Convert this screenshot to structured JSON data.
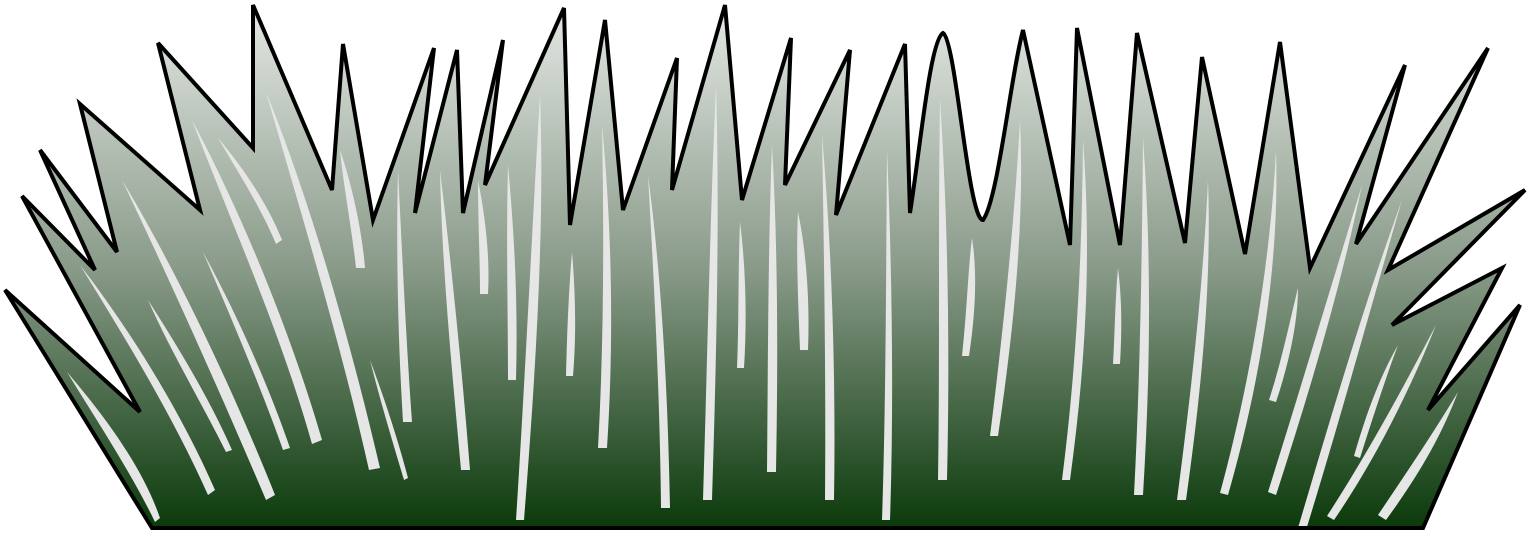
{
  "image": {
    "subject": "grass-tuft-clipart",
    "colors": {
      "background": "#ffffff",
      "gradient_top": "#e4e8e4",
      "gradient_mid": "#8a9b8a",
      "gradient_bottom": "#0b3a0b",
      "outline": "#000000",
      "blade_highlight": "#e6e6e6"
    }
  }
}
